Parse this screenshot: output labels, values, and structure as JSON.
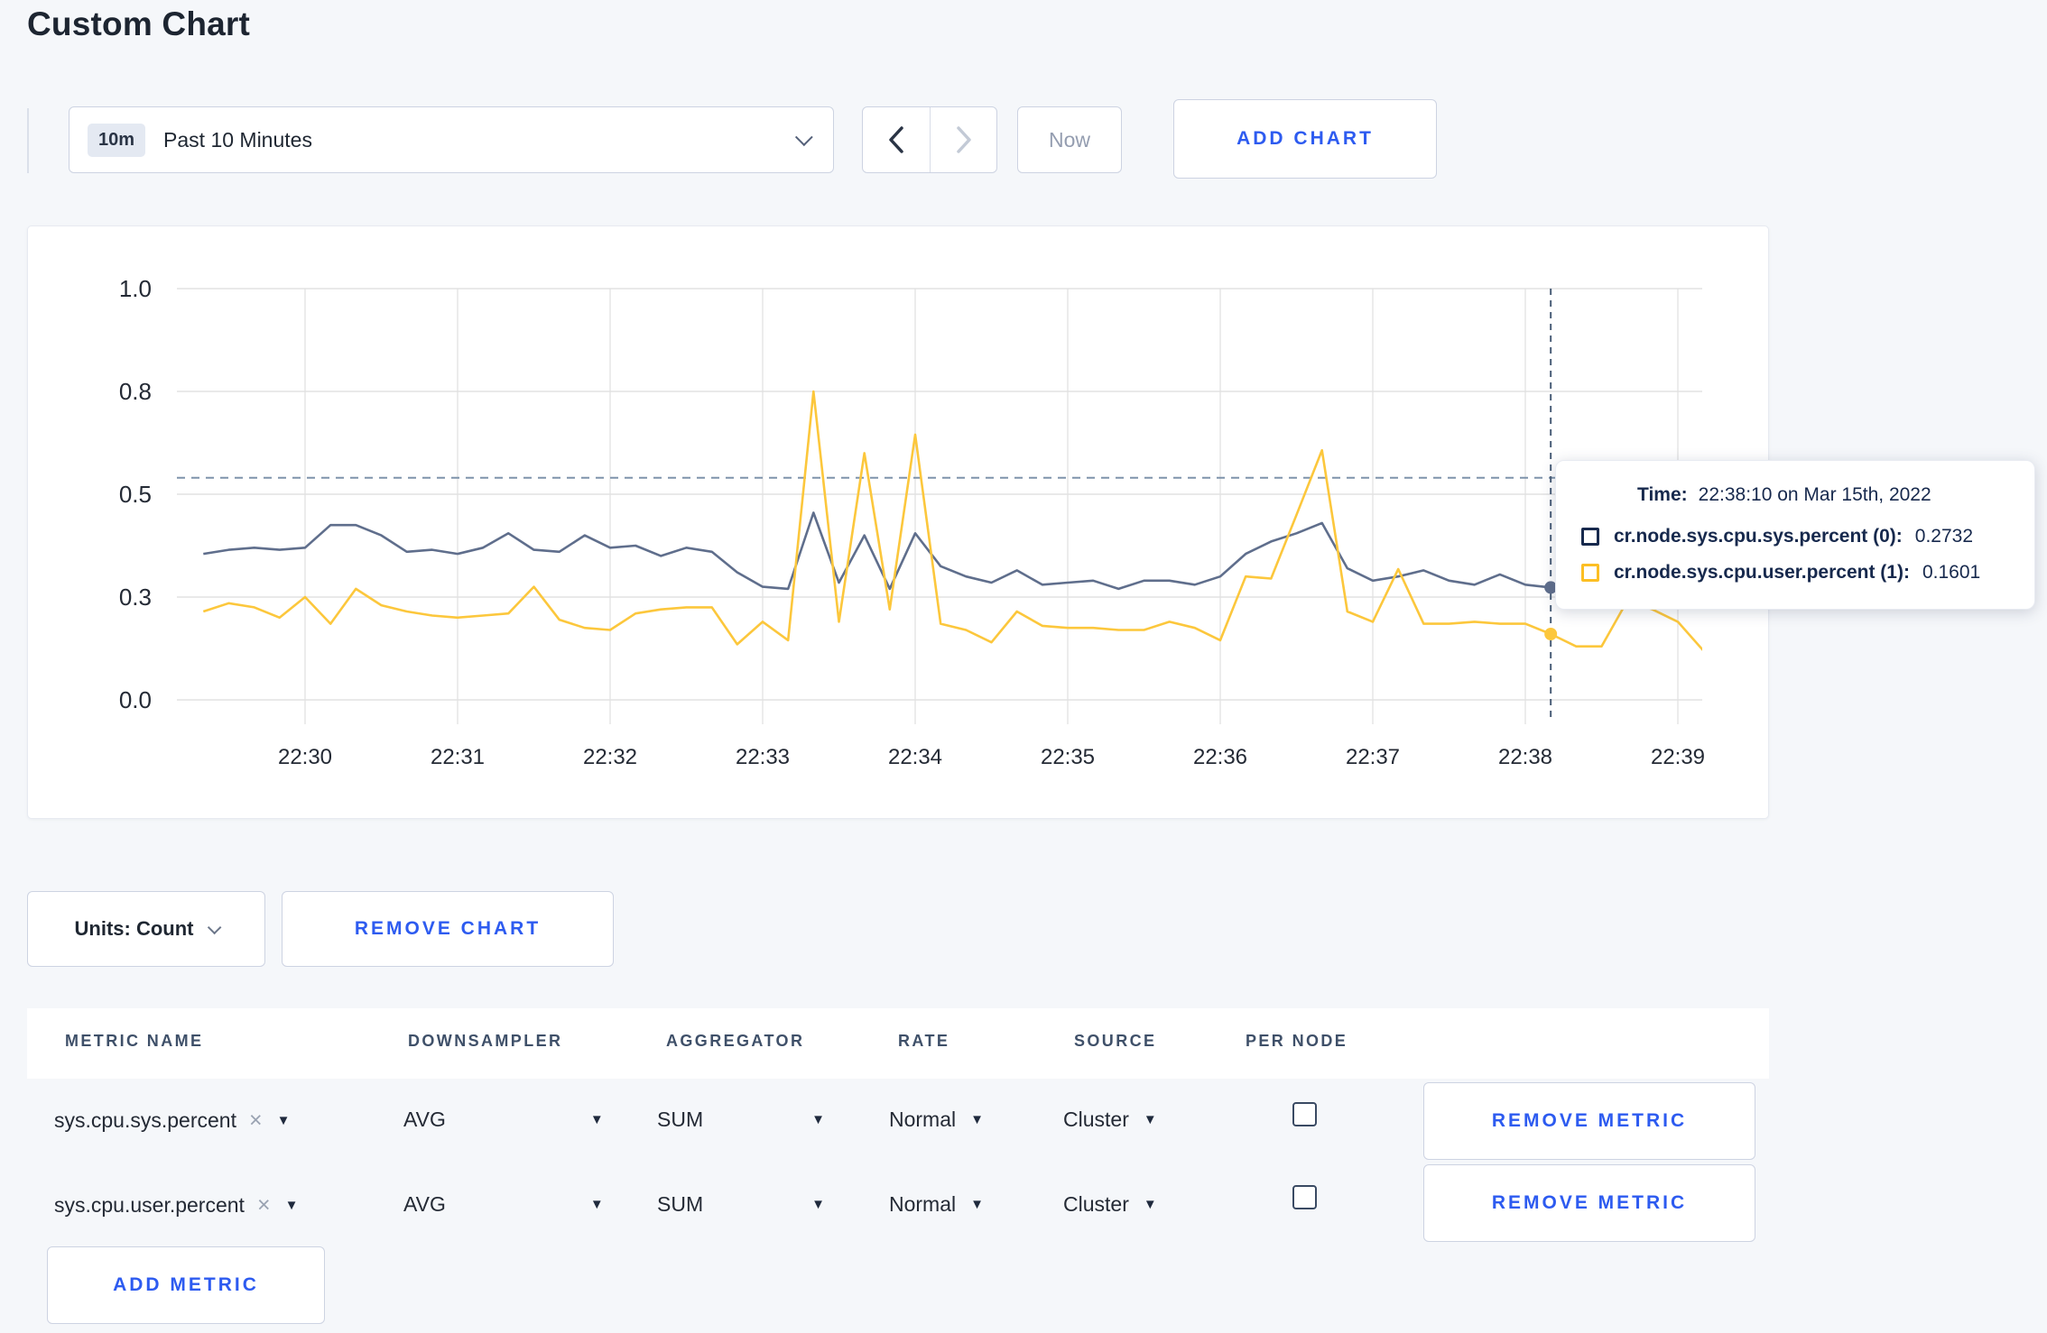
{
  "page_title": "Custom Chart",
  "toolbar": {
    "time_window_badge": "10m",
    "time_window_label": "Past 10 Minutes",
    "now_label": "Now",
    "add_chart_label": "ADD CHART"
  },
  "tooltip": {
    "time_label": "Time:",
    "time_value": "22:38:10 on Mar 15th, 2022",
    "series": [
      {
        "label": "cr.node.sys.cpu.sys.percent (0):",
        "value": "0.2732",
        "color": "#17294d"
      },
      {
        "label": "cr.node.sys.cpu.user.percent (1):",
        "value": "0.1601",
        "color": "#fcbf24"
      }
    ]
  },
  "units_button": {
    "label": "Units: Count"
  },
  "remove_chart_label": "REMOVE CHART",
  "metrics_table": {
    "headers": [
      "METRIC NAME",
      "DOWNSAMPLER",
      "AGGREGATOR",
      "RATE",
      "SOURCE",
      "PER NODE"
    ],
    "remove_metric_label": "REMOVE METRIC",
    "add_metric_label": "ADD METRIC",
    "rows": [
      {
        "name": "sys.cpu.sys.percent",
        "downsampler": "AVG",
        "aggregator": "SUM",
        "rate": "Normal",
        "source": "Cluster",
        "per_node_checked": false
      },
      {
        "name": "sys.cpu.user.percent",
        "downsampler": "AVG",
        "aggregator": "SUM",
        "rate": "Normal",
        "source": "Cluster",
        "per_node_checked": false
      }
    ]
  },
  "chart_data": {
    "type": "line",
    "title": "",
    "xlabel": "",
    "ylabel": "",
    "ylim": [
      0,
      1
    ],
    "grid": true,
    "legend_position": "none",
    "y_axis": {
      "tick_labels": [
        "1.0",
        "0.8",
        "0.5",
        "0.3",
        "0.0"
      ],
      "tick_values": [
        1.0,
        0.75,
        0.5,
        0.25,
        0.0
      ]
    },
    "x_axis": {
      "tick_labels": [
        "22:30",
        "22:31",
        "22:32",
        "22:33",
        "22:34",
        "22:35",
        "22:36",
        "22:37",
        "22:38",
        "22:39"
      ]
    },
    "dashed_reference_value": 0.54,
    "crosshair": {
      "time": "22:38:10",
      "index": 53,
      "sys_value": 0.2732,
      "user_value": 0.1601
    },
    "x": [
      "22:29:20",
      "22:29:30",
      "22:29:40",
      "22:29:50",
      "22:30:00",
      "22:30:10",
      "22:30:20",
      "22:30:30",
      "22:30:40",
      "22:30:50",
      "22:31:00",
      "22:31:10",
      "22:31:20",
      "22:31:30",
      "22:31:40",
      "22:31:50",
      "22:32:00",
      "22:32:10",
      "22:32:20",
      "22:32:30",
      "22:32:40",
      "22:32:50",
      "22:33:00",
      "22:33:10",
      "22:33:20",
      "22:33:30",
      "22:33:40",
      "22:33:50",
      "22:34:00",
      "22:34:10",
      "22:34:20",
      "22:34:30",
      "22:34:40",
      "22:34:50",
      "22:35:00",
      "22:35:10",
      "22:35:20",
      "22:35:30",
      "22:35:40",
      "22:35:50",
      "22:36:00",
      "22:36:10",
      "22:36:20",
      "22:36:30",
      "22:36:40",
      "22:36:50",
      "22:37:00",
      "22:37:10",
      "22:37:20",
      "22:37:30",
      "22:37:40",
      "22:37:50",
      "22:38:00",
      "22:38:10",
      "22:38:20",
      "22:38:30",
      "22:38:40",
      "22:38:50",
      "22:39:00",
      "22:39:10",
      "22:39:20"
    ],
    "series": [
      {
        "name": "cr.node.sys.cpu.sys.percent (0)",
        "color": "#5f6e8c",
        "values": [
          0.355,
          0.365,
          0.37,
          0.365,
          0.37,
          0.425,
          0.425,
          0.4,
          0.36,
          0.365,
          0.355,
          0.37,
          0.405,
          0.365,
          0.36,
          0.4,
          0.37,
          0.375,
          0.35,
          0.37,
          0.36,
          0.31,
          0.275,
          0.27,
          0.455,
          0.285,
          0.4,
          0.27,
          0.405,
          0.325,
          0.3,
          0.285,
          0.315,
          0.28,
          0.285,
          0.29,
          0.27,
          0.29,
          0.29,
          0.28,
          0.3,
          0.355,
          0.385,
          0.405,
          0.43,
          0.32,
          0.29,
          0.3,
          0.315,
          0.29,
          0.28,
          0.305,
          0.28,
          0.2732,
          0.25,
          0.26,
          0.275,
          0.29,
          0.275,
          0.265,
          0.275
        ]
      },
      {
        "name": "cr.node.sys.cpu.user.percent (1)",
        "color": "#fcc73c",
        "values": [
          0.215,
          0.235,
          0.225,
          0.2,
          0.25,
          0.185,
          0.27,
          0.23,
          0.215,
          0.205,
          0.2,
          0.205,
          0.21,
          0.275,
          0.195,
          0.175,
          0.17,
          0.21,
          0.22,
          0.225,
          0.225,
          0.135,
          0.19,
          0.145,
          0.75,
          0.19,
          0.6,
          0.22,
          0.645,
          0.185,
          0.17,
          0.14,
          0.215,
          0.18,
          0.175,
          0.175,
          0.17,
          0.17,
          0.19,
          0.175,
          0.145,
          0.3,
          0.295,
          0.45,
          0.607,
          0.215,
          0.19,
          0.318,
          0.185,
          0.185,
          0.19,
          0.185,
          0.185,
          0.1601,
          0.13,
          0.13,
          0.24,
          0.22,
          0.19,
          0.12,
          0.26
        ]
      }
    ]
  }
}
